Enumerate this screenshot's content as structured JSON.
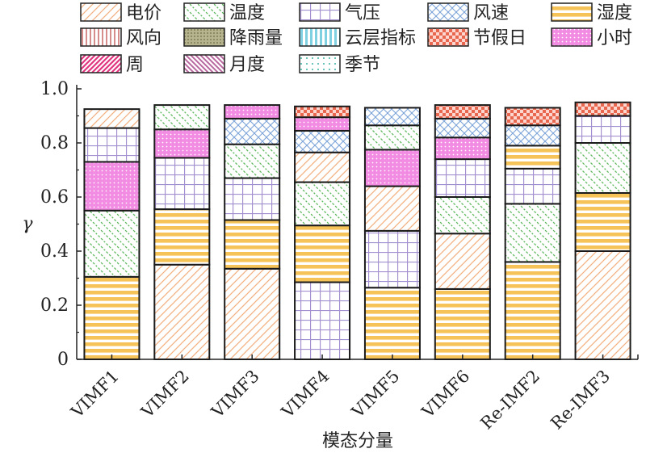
{
  "chart_data": {
    "type": "bar",
    "stacked": true,
    "title": "",
    "xlabel": "模态分量",
    "ylabel": "γ",
    "ylim": [
      0,
      1.0
    ],
    "yticks": [
      0,
      0.2,
      0.4,
      0.6,
      0.8,
      1.0
    ],
    "ytick_labels": [
      "0",
      "0.2",
      "0.4",
      "0.6",
      "0.8",
      "1.0"
    ],
    "legend_position": "top",
    "categories": [
      "VIMF1",
      "VIMF2",
      "VIMF3",
      "VIMF4",
      "VIMF5",
      "VIMF6",
      "Re-IMF2",
      "Re-IMF3"
    ],
    "series": [
      {
        "name": "电价",
        "pattern": "diag-orange"
      },
      {
        "name": "温度",
        "pattern": "diag-green"
      },
      {
        "name": "气压",
        "pattern": "grid-purple"
      },
      {
        "name": "风速",
        "pattern": "cross-blue"
      },
      {
        "name": "湿度",
        "pattern": "hstripe-yellow"
      },
      {
        "name": "风向",
        "pattern": "vstripe-red"
      },
      {
        "name": "降雨量",
        "pattern": "dots-olive"
      },
      {
        "name": "云层指标",
        "pattern": "vstripe-cyan"
      },
      {
        "name": "节假日",
        "pattern": "checker-red"
      },
      {
        "name": "小时",
        "pattern": "dots-magenta"
      },
      {
        "name": "周",
        "pattern": "diag-magenta"
      },
      {
        "name": "月度",
        "pattern": "diag-mauve"
      },
      {
        "name": "季节",
        "pattern": "dots-teal"
      }
    ],
    "stacks": [
      [
        {
          "s": "湿度",
          "v": 0.305
        },
        {
          "s": "温度",
          "v": 0.245
        },
        {
          "s": "小时",
          "v": 0.18
        },
        {
          "s": "气压",
          "v": 0.125
        },
        {
          "s": "电价",
          "v": 0.07
        }
      ],
      [
        {
          "s": "电价",
          "v": 0.35
        },
        {
          "s": "湿度",
          "v": 0.205
        },
        {
          "s": "气压",
          "v": 0.19
        },
        {
          "s": "小时",
          "v": 0.105
        },
        {
          "s": "温度",
          "v": 0.09
        }
      ],
      [
        {
          "s": "电价",
          "v": 0.335
        },
        {
          "s": "湿度",
          "v": 0.18
        },
        {
          "s": "气压",
          "v": 0.155
        },
        {
          "s": "温度",
          "v": 0.125
        },
        {
          "s": "风速",
          "v": 0.095
        },
        {
          "s": "小时",
          "v": 0.05
        }
      ],
      [
        {
          "s": "气压",
          "v": 0.285
        },
        {
          "s": "湿度",
          "v": 0.21
        },
        {
          "s": "温度",
          "v": 0.16
        },
        {
          "s": "电价",
          "v": 0.11
        },
        {
          "s": "风速",
          "v": 0.08
        },
        {
          "s": "小时",
          "v": 0.05
        },
        {
          "s": "节假日",
          "v": 0.04
        }
      ],
      [
        {
          "s": "湿度",
          "v": 0.265
        },
        {
          "s": "气压",
          "v": 0.21
        },
        {
          "s": "电价",
          "v": 0.165
        },
        {
          "s": "小时",
          "v": 0.135
        },
        {
          "s": "温度",
          "v": 0.09
        },
        {
          "s": "风速",
          "v": 0.065
        }
      ],
      [
        {
          "s": "湿度",
          "v": 0.26
        },
        {
          "s": "电价",
          "v": 0.205
        },
        {
          "s": "温度",
          "v": 0.135
        },
        {
          "s": "气压",
          "v": 0.14
        },
        {
          "s": "小时",
          "v": 0.08
        },
        {
          "s": "风速",
          "v": 0.07
        },
        {
          "s": "节假日",
          "v": 0.05
        }
      ],
      [
        {
          "s": "湿度",
          "v": 0.36
        },
        {
          "s": "温度",
          "v": 0.215
        },
        {
          "s": "气压",
          "v": 0.13
        },
        {
          "s": "湿度",
          "v": 0.085
        },
        {
          "s": "风速",
          "v": 0.075
        },
        {
          "s": "节假日",
          "v": 0.065
        }
      ],
      [
        {
          "s": "电价",
          "v": 0.4
        },
        {
          "s": "湿度",
          "v": 0.215
        },
        {
          "s": "温度",
          "v": 0.185
        },
        {
          "s": "气压",
          "v": 0.1
        },
        {
          "s": "节假日",
          "v": 0.05
        }
      ]
    ]
  }
}
